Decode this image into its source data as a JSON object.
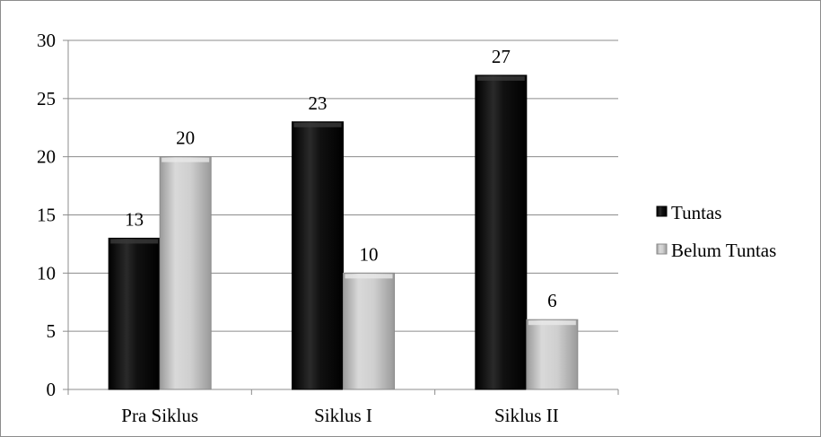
{
  "chart_data": {
    "type": "bar",
    "categories": [
      "Pra Siklus",
      "Siklus I",
      "Siklus II"
    ],
    "series": [
      {
        "name": "Tuntas",
        "values": [
          13,
          23,
          27
        ],
        "color": "#111111"
      },
      {
        "name": "Belum Tuntas",
        "values": [
          20,
          10,
          6
        ],
        "color": "#cfcfcf"
      }
    ],
    "ylim": [
      0,
      30
    ],
    "yticks": [
      0,
      5,
      10,
      15,
      20,
      25,
      30
    ],
    "grid": true,
    "legend": "right",
    "data_labels": true
  }
}
